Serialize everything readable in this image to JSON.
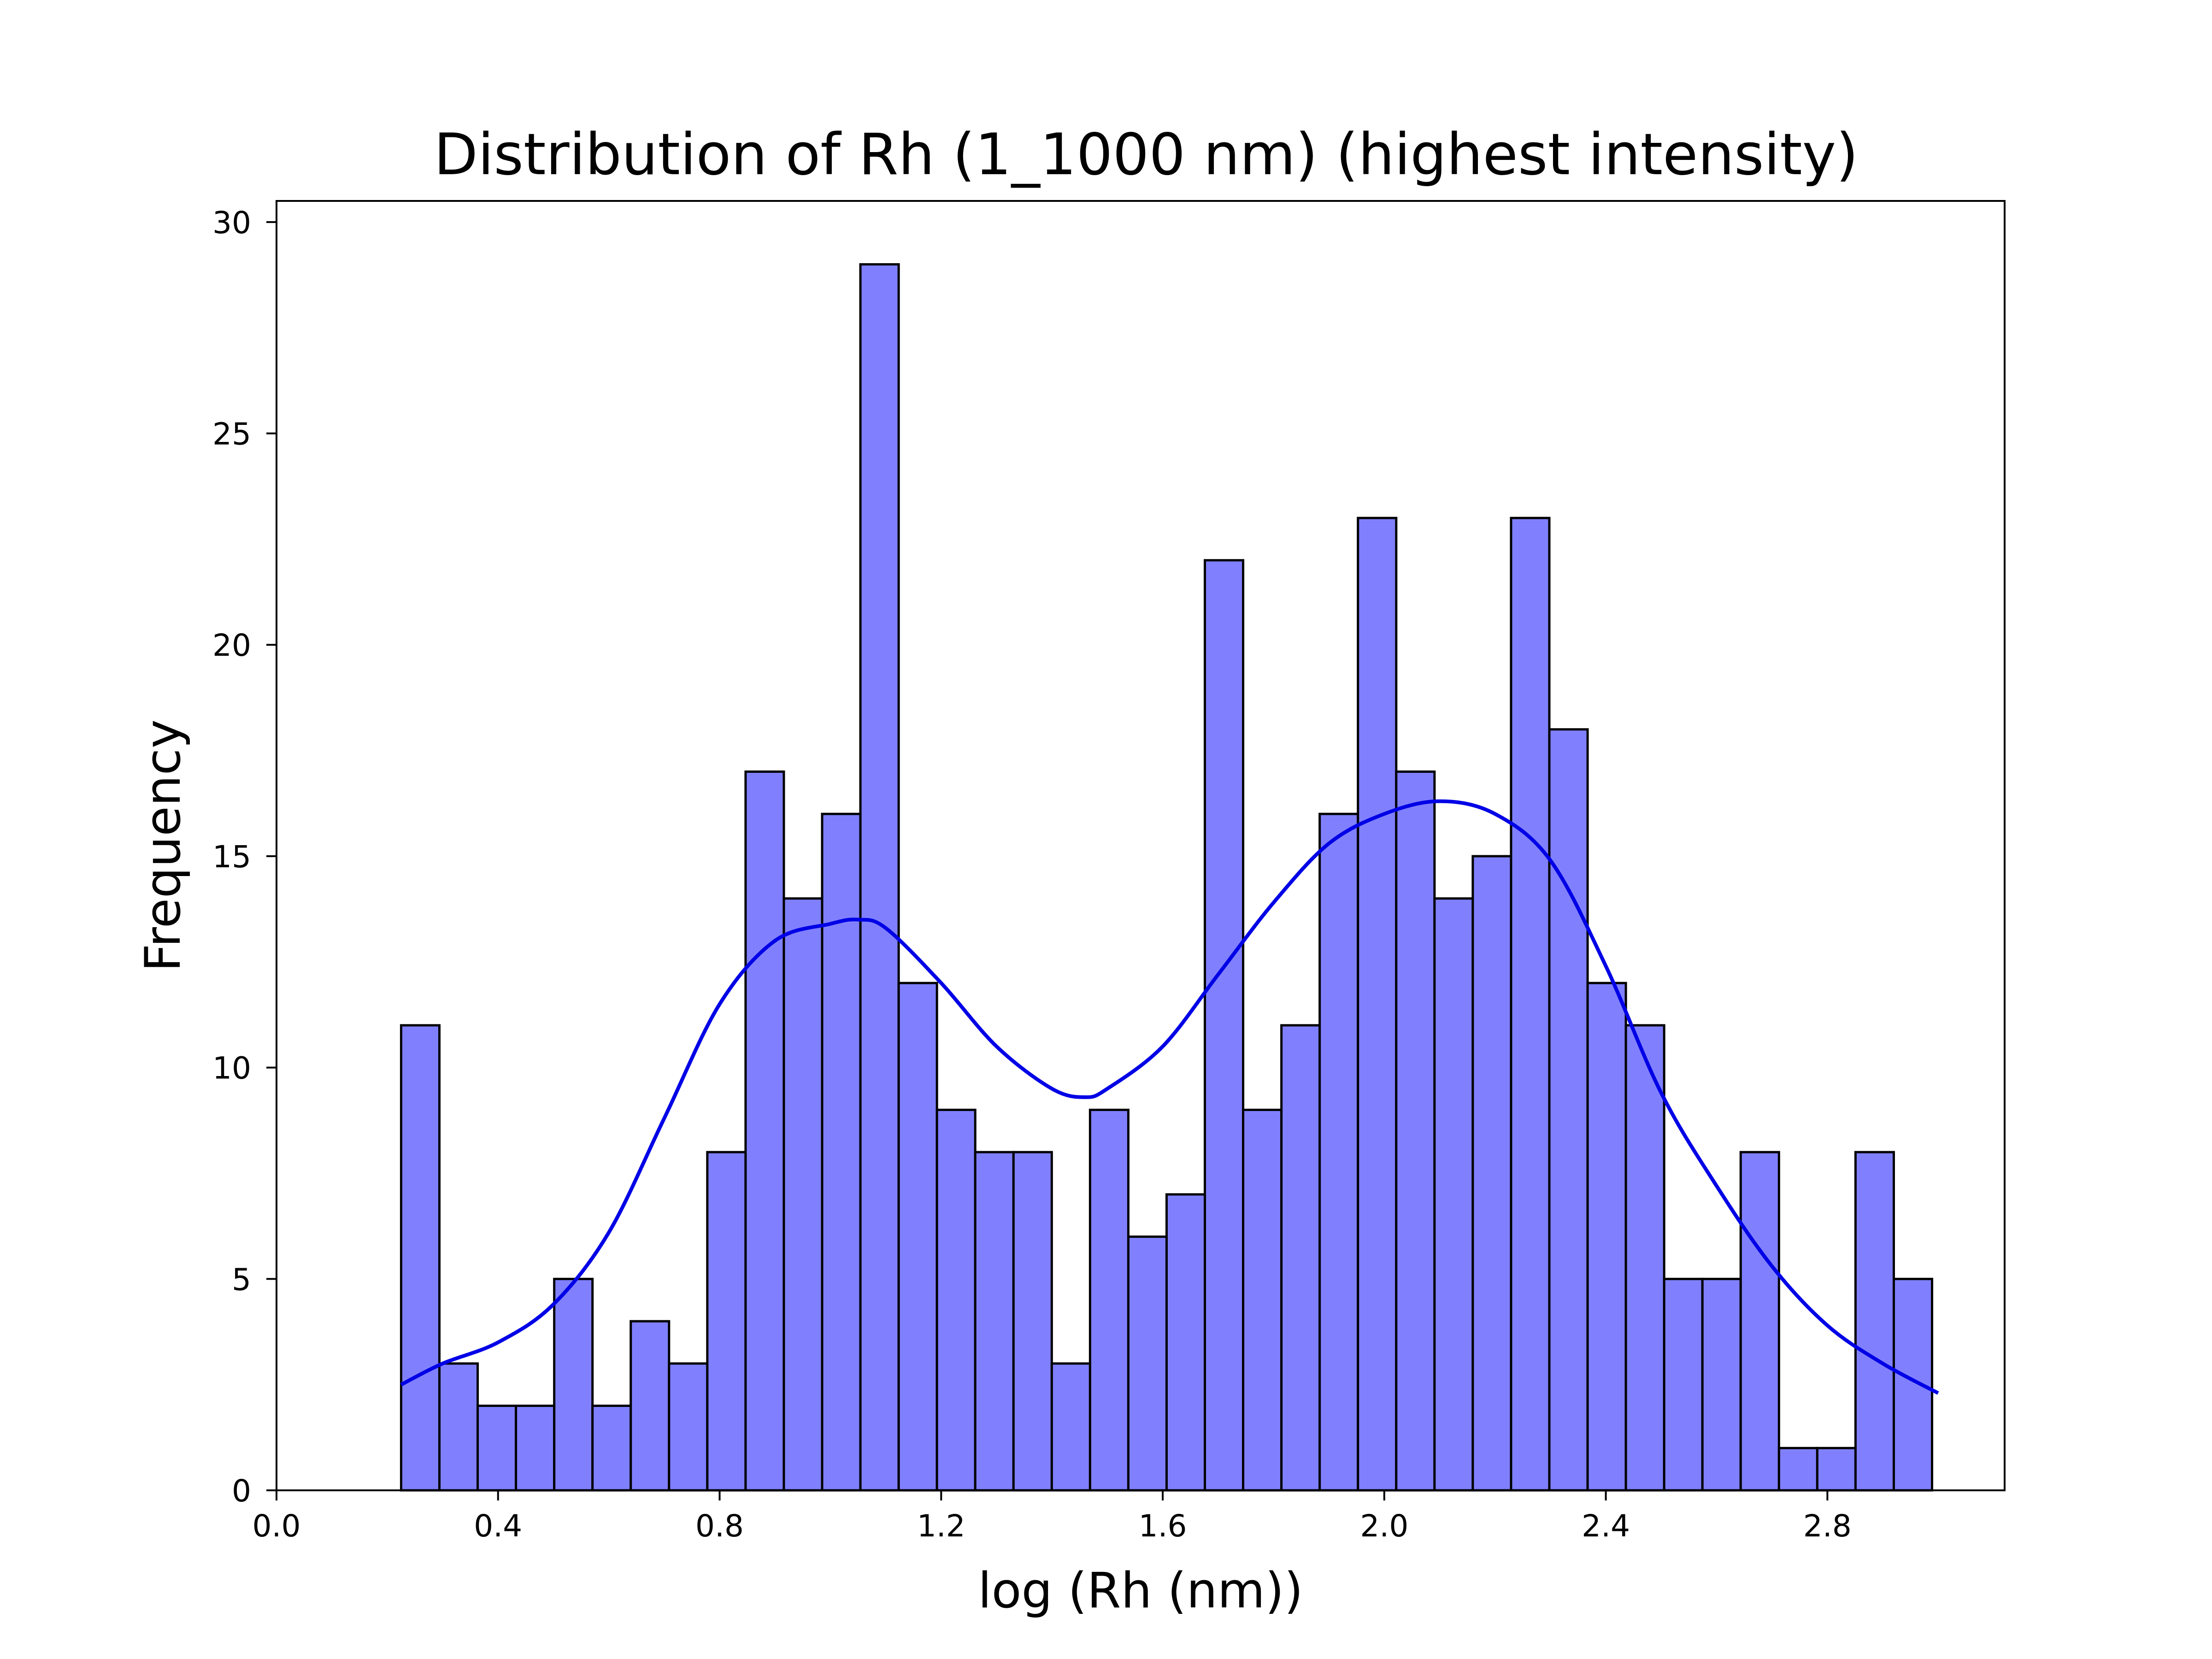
{
  "chart_data": {
    "type": "bar",
    "title": "Distribution of Rh (1_1000 nm) (highest intensity)",
    "xlabel": "log (Rh (nm))",
    "ylabel": "Frequency",
    "xlim": [
      0.0,
      3.12
    ],
    "ylim": [
      0,
      30.5
    ],
    "xticks": [
      "0.0",
      "0.4",
      "0.8",
      "1.2",
      "1.6",
      "2.0",
      "2.4",
      "2.8"
    ],
    "yticks": [
      "0",
      "5",
      "10",
      "15",
      "20",
      "25",
      "30"
    ],
    "bins": {
      "start": 0.225,
      "width": 0.0691,
      "counts": [
        11,
        3,
        2,
        2,
        5,
        2,
        4,
        3,
        8,
        17,
        14,
        16,
        29,
        12,
        9,
        8,
        8,
        3,
        9,
        6,
        7,
        22,
        9,
        11,
        16,
        23,
        17,
        14,
        15,
        23,
        18,
        12,
        11,
        5,
        5,
        8,
        1,
        1,
        8,
        5
      ]
    },
    "kde": {
      "x": [
        0.225,
        0.3,
        0.4,
        0.5,
        0.6,
        0.7,
        0.8,
        0.9,
        1.0,
        1.05,
        1.1,
        1.2,
        1.3,
        1.4,
        1.46,
        1.5,
        1.6,
        1.7,
        1.8,
        1.9,
        2.0,
        2.1,
        2.2,
        2.3,
        2.4,
        2.5,
        2.6,
        2.7,
        2.8,
        2.9,
        3.0
      ],
      "y": [
        2.5,
        3.0,
        3.5,
        4.4,
        6.1,
        8.8,
        11.5,
        13.0,
        13.4,
        13.5,
        13.3,
        12.0,
        10.5,
        9.5,
        9.3,
        9.5,
        10.5,
        12.2,
        13.9,
        15.3,
        16.0,
        16.3,
        16.0,
        14.9,
        12.4,
        9.4,
        7.2,
        5.3,
        3.9,
        3.0,
        2.3
      ]
    },
    "colors": {
      "bar_fill": "#8080ff",
      "bar_edge": "#000000",
      "kde_line": "#0000e6"
    },
    "grid": false,
    "legend": "none"
  }
}
